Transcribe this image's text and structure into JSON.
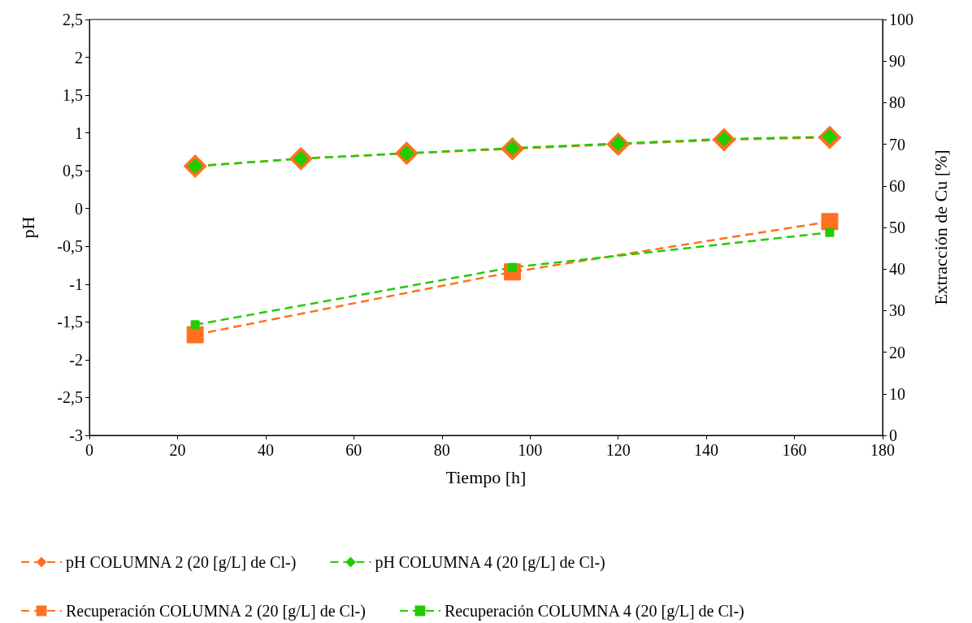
{
  "chart_data": {
    "type": "line",
    "xlabel": "Tiempo [h]",
    "ylabel": "pH",
    "y2label": "Extracción de Cu [%]",
    "xlim": [
      0,
      180
    ],
    "xticks": [
      0,
      20,
      40,
      60,
      80,
      100,
      120,
      140,
      160,
      180
    ],
    "ylim": [
      -3,
      2.5
    ],
    "yticks": [
      {
        "value": -3,
        "label": "-3"
      },
      {
        "value": -2.5,
        "label": "-2,5"
      },
      {
        "value": -2,
        "label": "-2"
      },
      {
        "value": -1.5,
        "label": "-1,5"
      },
      {
        "value": -1,
        "label": "-1"
      },
      {
        "value": -0.5,
        "label": "-0,5"
      },
      {
        "value": 0,
        "label": "0"
      },
      {
        "value": 0.5,
        "label": "0,5"
      },
      {
        "value": 1,
        "label": "1"
      },
      {
        "value": 1.5,
        "label": "1,5"
      },
      {
        "value": 2,
        "label": "2"
      },
      {
        "value": 2.5,
        "label": "2,5"
      }
    ],
    "y2lim": [
      0,
      100
    ],
    "y2ticks": [
      0,
      10,
      20,
      30,
      40,
      50,
      60,
      70,
      80,
      90,
      100
    ],
    "grid": false,
    "legend": "bottom",
    "series": [
      {
        "name": "pH COLUMNA 2 (20 [g/L] de Cl-)",
        "color": "#ff7020",
        "marker": "diamond",
        "line_style": "dashed",
        "x": [
          24,
          48,
          72,
          96,
          120,
          144,
          168
        ],
        "values": [
          0.56,
          0.66,
          0.73,
          0.79,
          0.85,
          0.91,
          0.94
        ]
      },
      {
        "name": "pH COLUMNA 4 (20 [g/L] de Cl-)",
        "color": "#22cc00",
        "marker": "diamond",
        "line_style": "dashed",
        "x": [
          24,
          48,
          72,
          96,
          120,
          144,
          168
        ],
        "values": [
          0.56,
          0.66,
          0.73,
          0.8,
          0.86,
          0.92,
          0.95
        ]
      },
      {
        "name": "Recuperación COLUMNA 2 (20 [g/L] de Cl-)",
        "color": "#ff7020",
        "marker": "square",
        "line_style": "dashed",
        "axis": "y2",
        "x": [
          24,
          96,
          168
        ],
        "values": [
          24.2,
          39.3,
          51.4
        ]
      },
      {
        "name": "Recuperación COLUMNA 4 (20 [g/L] de Cl-)",
        "color": "#22cc00",
        "marker": "square",
        "line_style": "dashed",
        "axis": "y2",
        "x": [
          24,
          96,
          168
        ],
        "values": [
          26.6,
          40.4,
          48.8
        ]
      }
    ]
  }
}
